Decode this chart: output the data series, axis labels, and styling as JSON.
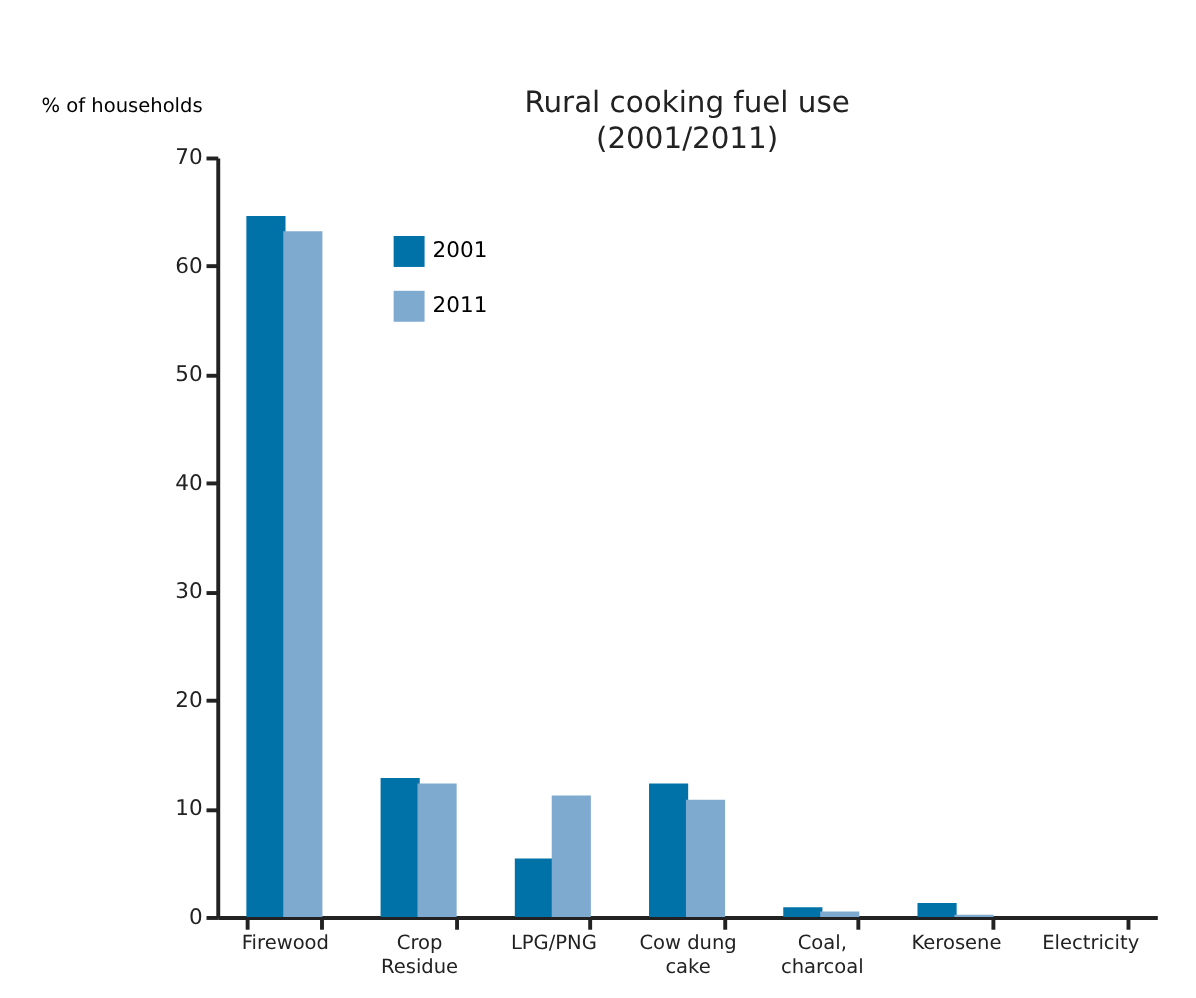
{
  "chart_data": {
    "type": "bar",
    "title": "Rural cooking fuel use",
    "subtitle": "(2001/2011)",
    "ylabel": "% of households",
    "categories": [
      "Firewood",
      "Crop\nResidue",
      "LPG/PNG",
      "Cow dung\ncake",
      "Coal,\ncharcoal",
      "Kerosene",
      "Electricity"
    ],
    "series": [
      {
        "name": "2001",
        "color": "#0072a8",
        "values": [
          64.6,
          12.8,
          5.4,
          12.3,
          0.9,
          1.3,
          0
        ]
      },
      {
        "name": "2011",
        "color": "#7faad0",
        "values": [
          63.2,
          12.3,
          11.2,
          10.8,
          0.5,
          0.2,
          0
        ]
      }
    ],
    "ylim": [
      0,
      70
    ],
    "yticks": [
      0,
      10,
      20,
      30,
      40,
      50,
      60,
      70
    ],
    "grid": false,
    "legend": "top left"
  }
}
